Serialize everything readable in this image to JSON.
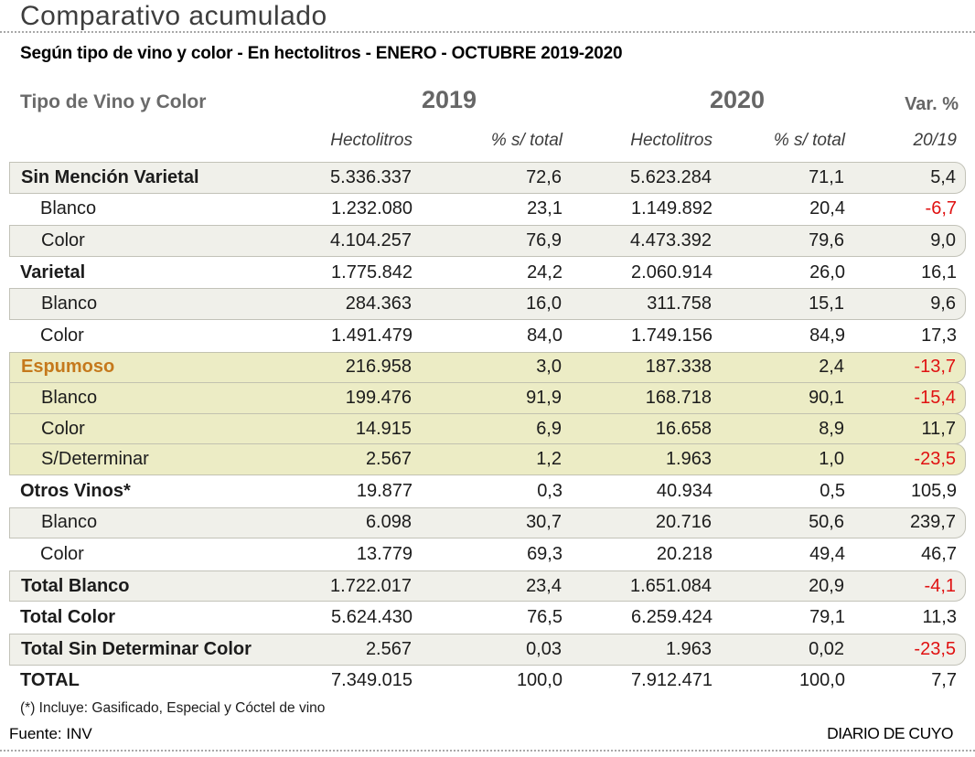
{
  "page": {
    "title": "Comparativo acumulado",
    "subtitle": "Según tipo de vino y color - En hectolitros - ENERO - OCTUBRE 2019-2020",
    "footnote": "(*) Incluye: Gasificado, Especial y Cóctel de vino",
    "source": "Fuente: INV",
    "credit": "DIARIO DE CUYO"
  },
  "header": {
    "col_group_label": "Tipo de Vino y Color",
    "year_2019": "2019",
    "year_2020": "2020",
    "var_label": "Var. %",
    "sub_hectolitros_2019": "Hectolitros",
    "sub_pct_2019": "% s/ total",
    "sub_hectolitros_2020": "Hectolitros",
    "sub_pct_2020": "% s/ total",
    "sub_var": "20/19"
  },
  "colors": {
    "accent_orange": "#c5791c",
    "negative_red": "#e01111",
    "row_gray_bg": "#f0f0ea",
    "row_yellow_bg": "#ececc5",
    "row_border": "#c2c2b8",
    "header_gray": "#666666"
  },
  "table": {
    "rows": [
      {
        "label": "Sin Mención Varietal",
        "bold": true,
        "indent": false,
        "accent": false,
        "bg": "gray",
        "hl2019": "5.336.337",
        "pct2019": "72,6",
        "hl2020": "5.623.284",
        "pct2020": "71,1",
        "var": "5,4",
        "var_negative": false
      },
      {
        "label": "Blanco",
        "bold": false,
        "indent": true,
        "accent": false,
        "bg": "none",
        "hl2019": "1.232.080",
        "pct2019": "23,1",
        "hl2020": "1.149.892",
        "pct2020": "20,4",
        "var": "-6,7",
        "var_negative": true
      },
      {
        "label": "Color",
        "bold": false,
        "indent": true,
        "accent": false,
        "bg": "gray",
        "hl2019": "4.104.257",
        "pct2019": "76,9",
        "hl2020": "4.473.392",
        "pct2020": "79,6",
        "var": "9,0",
        "var_negative": false
      },
      {
        "label": "Varietal",
        "bold": true,
        "indent": false,
        "accent": false,
        "bg": "none",
        "hl2019": "1.775.842",
        "pct2019": "24,2",
        "hl2020": "2.060.914",
        "pct2020": "26,0",
        "var": "16,1",
        "var_negative": false
      },
      {
        "label": "Blanco",
        "bold": false,
        "indent": true,
        "accent": false,
        "bg": "gray",
        "hl2019": "284.363",
        "pct2019": "16,0",
        "hl2020": "311.758",
        "pct2020": "15,1",
        "var": "9,6",
        "var_negative": false
      },
      {
        "label": "Color",
        "bold": false,
        "indent": true,
        "accent": false,
        "bg": "none",
        "hl2019": "1.491.479",
        "pct2019": "84,0",
        "hl2020": "1.749.156",
        "pct2020": "84,9",
        "var": "17,3",
        "var_negative": false
      },
      {
        "label": "Espumoso",
        "bold": true,
        "indent": false,
        "accent": true,
        "bg": "yellow",
        "hl2019": "216.958",
        "pct2019": "3,0",
        "hl2020": "187.338",
        "pct2020": "2,4",
        "var": "-13,7",
        "var_negative": true
      },
      {
        "label": "Blanco",
        "bold": false,
        "indent": true,
        "accent": false,
        "bg": "yellow",
        "hl2019": "199.476",
        "pct2019": "91,9",
        "hl2020": "168.718",
        "pct2020": "90,1",
        "var": "-15,4",
        "var_negative": true
      },
      {
        "label": "Color",
        "bold": false,
        "indent": true,
        "accent": false,
        "bg": "yellow",
        "hl2019": "14.915",
        "pct2019": "6,9",
        "hl2020": "16.658",
        "pct2020": "8,9",
        "var": "11,7",
        "var_negative": false
      },
      {
        "label": "S/Determinar",
        "bold": false,
        "indent": true,
        "accent": false,
        "bg": "yellow",
        "hl2019": "2.567",
        "pct2019": "1,2",
        "hl2020": "1.963",
        "pct2020": "1,0",
        "var": "-23,5",
        "var_negative": true
      },
      {
        "label": "Otros Vinos*",
        "bold": true,
        "indent": false,
        "accent": false,
        "bg": "none",
        "hl2019": "19.877",
        "pct2019": "0,3",
        "hl2020": "40.934",
        "pct2020": "0,5",
        "var": "105,9",
        "var_negative": false
      },
      {
        "label": "Blanco",
        "bold": false,
        "indent": true,
        "accent": false,
        "bg": "gray",
        "hl2019": "6.098",
        "pct2019": "30,7",
        "hl2020": "20.716",
        "pct2020": "50,6",
        "var": "239,7",
        "var_negative": false
      },
      {
        "label": "Color",
        "bold": false,
        "indent": true,
        "accent": false,
        "bg": "none",
        "hl2019": "13.779",
        "pct2019": "69,3",
        "hl2020": "20.218",
        "pct2020": "49,4",
        "var": "46,7",
        "var_negative": false
      },
      {
        "label": "Total Blanco",
        "bold": true,
        "indent": false,
        "accent": false,
        "bg": "gray",
        "hl2019": "1.722.017",
        "pct2019": "23,4",
        "hl2020": "1.651.084",
        "pct2020": "20,9",
        "var": "-4,1",
        "var_negative": true
      },
      {
        "label": "Total Color",
        "bold": true,
        "indent": false,
        "accent": false,
        "bg": "none",
        "hl2019": "5.624.430",
        "pct2019": "76,5",
        "hl2020": "6.259.424",
        "pct2020": "79,1",
        "var": "11,3",
        "var_negative": false
      },
      {
        "label": "Total Sin Determinar Color",
        "bold": true,
        "indent": false,
        "accent": false,
        "bg": "gray",
        "hl2019": "2.567",
        "pct2019": "0,03",
        "hl2020": "1.963",
        "pct2020": "0,02",
        "var": "-23,5",
        "var_negative": true
      },
      {
        "label": "TOTAL",
        "bold": true,
        "indent": false,
        "accent": false,
        "bg": "none",
        "hl2019": "7.349.015",
        "pct2019": "100,0",
        "hl2020": "7.912.471",
        "pct2020": "100,0",
        "var": "7,7",
        "var_negative": false
      }
    ]
  },
  "chart_data": {
    "type": "table",
    "title": "Comparativo acumulado",
    "subtitle": "Según tipo de vino y color - En hectolitros - ENERO - OCTUBRE 2019-2020",
    "columns": [
      "Tipo de Vino y Color",
      "2019 Hectolitros",
      "2019 % s/ total",
      "2020 Hectolitros",
      "2020 % s/ total",
      "Var. % 20/19"
    ],
    "rows": [
      [
        "Sin Mención Varietal",
        5336337,
        72.6,
        5623284,
        71.1,
        5.4
      ],
      [
        "Blanco",
        1232080,
        23.1,
        1149892,
        20.4,
        -6.7
      ],
      [
        "Color",
        4104257,
        76.9,
        4473392,
        79.6,
        9.0
      ],
      [
        "Varietal",
        1775842,
        24.2,
        2060914,
        26.0,
        16.1
      ],
      [
        "Blanco",
        284363,
        16.0,
        311758,
        15.1,
        9.6
      ],
      [
        "Color",
        1491479,
        84.0,
        1749156,
        84.9,
        17.3
      ],
      [
        "Espumoso",
        216958,
        3.0,
        187338,
        2.4,
        -13.7
      ],
      [
        "Blanco",
        199476,
        91.9,
        168718,
        90.1,
        -15.4
      ],
      [
        "Color",
        14915,
        6.9,
        16658,
        8.9,
        11.7
      ],
      [
        "S/Determinar",
        2567,
        1.2,
        1963,
        1.0,
        -23.5
      ],
      [
        "Otros Vinos*",
        19877,
        0.3,
        40934,
        0.5,
        105.9
      ],
      [
        "Blanco",
        6098,
        30.7,
        20716,
        50.6,
        239.7
      ],
      [
        "Color",
        13779,
        69.3,
        20218,
        49.4,
        46.7
      ],
      [
        "Total Blanco",
        1722017,
        23.4,
        1651084,
        20.9,
        -4.1
      ],
      [
        "Total Color",
        5624430,
        76.5,
        6259424,
        79.1,
        11.3
      ],
      [
        "Total Sin Determinar Color",
        2567,
        0.03,
        1963,
        0.02,
        -23.5
      ],
      [
        "TOTAL",
        7349015,
        100.0,
        7912471,
        100.0,
        7.7
      ]
    ],
    "source": "Fuente: INV",
    "notes": "(*) Incluye: Gasificado, Especial y Cóctel de vino"
  }
}
